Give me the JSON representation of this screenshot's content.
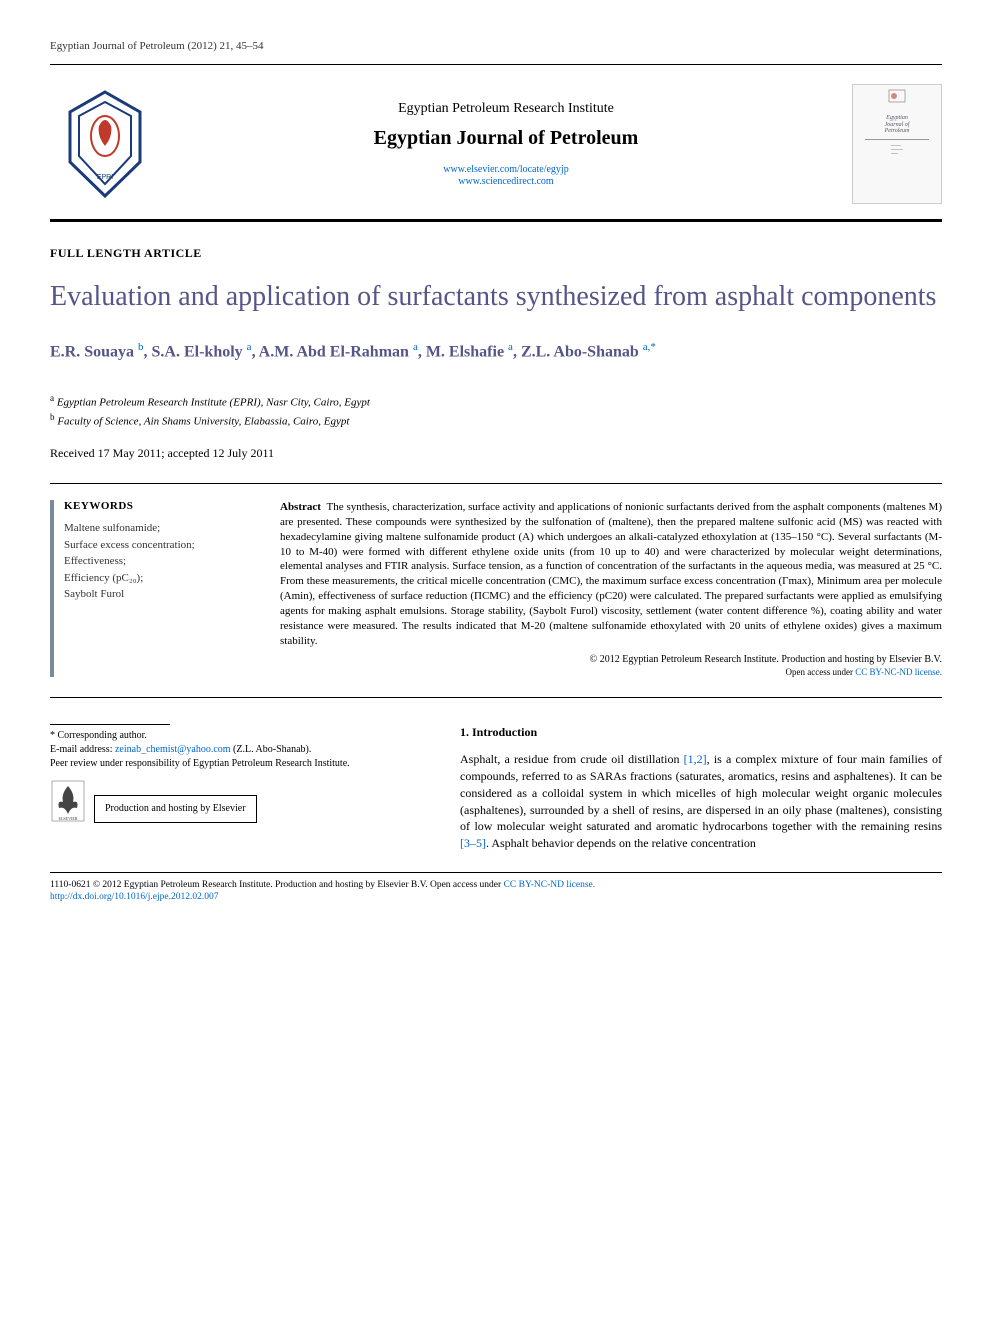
{
  "header": {
    "running_head": "Egyptian Journal of Petroleum (2012) 21, 45–54",
    "institute": "Egyptian Petroleum Research Institute",
    "journal_title": "Egyptian Journal of Petroleum",
    "url1": "www.elsevier.com/locate/egyjp",
    "url2": "www.sciencedirect.com",
    "cover_line1": "Egyptian",
    "cover_line2": "Journal of",
    "cover_line3": "Petroleum"
  },
  "article": {
    "type": "FULL LENGTH ARTICLE",
    "title": "Evaluation and application of surfactants synthesized from asphalt components",
    "authors_html": "E.R. Souaya <sup>b</sup>, S.A. El-kholy <sup>a</sup>, A.M. Abd El-Rahman <sup>a</sup>, M. Elshafie <sup>a</sup>, Z.L. Abo-Shanab <sup>a,*</sup>",
    "affiliations": {
      "a": "Egyptian Petroleum Research Institute (EPRI), Nasr City, Cairo, Egypt",
      "b": "Faculty of Science, Ain Shams University, Elabassia, Cairo, Egypt"
    },
    "dates": "Received 17 May 2011; accepted 12 July 2011"
  },
  "keywords": {
    "heading": "KEYWORDS",
    "items": "Maltene sulfonamide;\nSurface excess concentration;\nEffectiveness;\nEfficiency (pC₂₀);\nSaybolt Furol"
  },
  "abstract": {
    "label": "Abstract",
    "body": "The synthesis, characterization, surface activity and applications of nonionic surfactants derived from the asphalt components (maltenes M) are presented. These compounds were synthesized by the sulfonation of (maltene), then the prepared maltene sulfonic acid (MS) was reacted with hexadecylamine giving maltene sulfonamide product (A) which undergoes an alkali-catalyzed ethoxylation at (135–150 °C). Several surfactants (M-10 to M-40) were formed with different ethylene oxide units (from 10 up to 40) and were characterized by molecular weight determinations, elemental analyses and FTIR analysis. Surface tension, as a function of concentration of the surfactants in the aqueous media, was measured at 25 °C. From these measurements, the critical micelle concentration (CMC), the maximum surface excess concentration (Γmax), Minimum area per molecule (Amin), effectiveness of surface reduction (ΠCMC) and the efficiency (pC20) were calculated. The prepared surfactants were applied as emulsifying agents for making asphalt emulsions. Storage stability, (Saybolt Furol) viscosity, settlement (water content difference %), coating ability and water resistance were measured. The results indicated that M-20 (maltene sulfonamide ethoxylated with 20 units of ethylene oxides) gives a maximum stability.",
    "copyright": "© 2012 Egyptian Petroleum Research Institute. Production and hosting by Elsevier B.V.",
    "license_prefix": "Open access under ",
    "license_link": "CC BY-NC-ND license."
  },
  "corresponding": {
    "star": "* Corresponding author.",
    "email_label": "E-mail address: ",
    "email": "zeinab_chemist@yahoo.com",
    "email_suffix": " (Z.L. Abo-Shanab).",
    "peer": "Peer review under responsibility of Egyptian Petroleum Research Institute.",
    "hosting": "Production and hosting by Elsevier"
  },
  "introduction": {
    "heading": "1. Introduction",
    "body_pre": "Asphalt, a residue from crude oil distillation ",
    "ref1": "[1,2]",
    "body_mid": ", is a complex mixture of four main families of compounds, referred to as SARAs fractions (saturates, aromatics, resins and asphaltenes). It can be considered as a colloidal system in which micelles of high molecular weight organic molecules (asphaltenes), surrounded by a shell of resins, are dispersed in an oily phase (maltenes), consisting of low molecular weight saturated and aromatic hydrocarbons together with the remaining resins ",
    "ref2": "[3–5]",
    "body_post": ". Asphalt behavior depends on the relative concentration"
  },
  "footer": {
    "line1_pre": "1110-0621 © 2012 Egyptian Petroleum Research Institute. Production and hosting by Elsevier B.V. ",
    "line1_open": "Open access under ",
    "line1_link": "CC BY-NC-ND license.",
    "doi": "http://dx.doi.org/10.1016/j.ejpe.2012.02.007"
  },
  "colors": {
    "title_color": "#555588",
    "link_color": "#0066cc",
    "keyword_border": "#7a8a9a",
    "text": "#000000",
    "background": "#ffffff"
  }
}
